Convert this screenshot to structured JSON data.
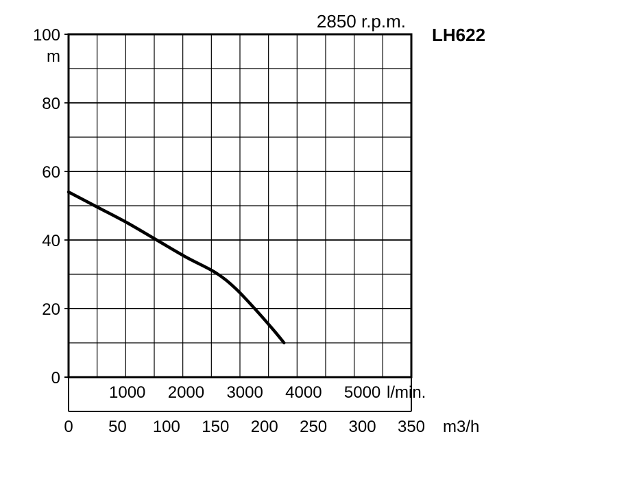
{
  "chart_data": {
    "type": "line",
    "title": "LH622",
    "subtitle": "2850 r.p.m.",
    "ylabel": "m",
    "xlabel": "m3/h",
    "secondary_xlabel": "l/min.",
    "ylim": [
      0,
      100
    ],
    "xlim": [
      0,
      350
    ],
    "y_ticks": [
      "0",
      "20",
      "40",
      "60",
      "80",
      "100"
    ],
    "x_ticks_m3h": [
      "0",
      "50",
      "100",
      "150",
      "200",
      "250",
      "300",
      "350"
    ],
    "x_ticks_lmin": [
      "1000",
      "2000",
      "3000",
      "4000",
      "5000"
    ],
    "grid": true,
    "series": [
      {
        "x": [
          0,
          30,
          60,
          90,
          120,
          150,
          170,
          190,
          210,
          220
        ],
        "y": [
          54,
          49.5,
          45,
          40,
          35,
          30.5,
          26,
          20,
          13.5,
          10
        ]
      }
    ]
  }
}
